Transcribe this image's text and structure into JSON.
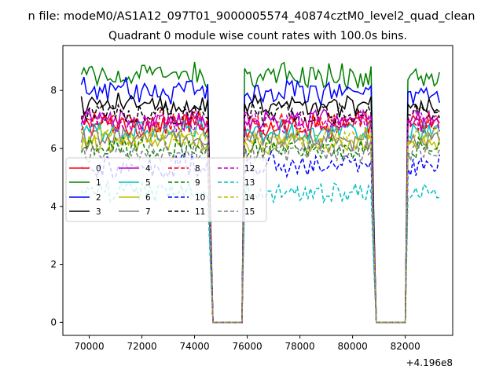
{
  "figure": {
    "suptitle": "n file: modeM0/AS1A12_097T01_9000005574_40874cztM0_level2_quad_clean",
    "offset_label": "+4.196e8"
  },
  "chart_data": {
    "type": "line",
    "title": "Quadrant 0 module wise count rates with 100.0s bins.",
    "xlabel": "",
    "ylabel": "",
    "xlim": [
      69000,
      83800
    ],
    "ylim": [
      -0.45,
      9.55
    ],
    "grid": false,
    "legend_position": "center-left",
    "xticks": [
      70000,
      72000,
      74000,
      76000,
      78000,
      80000,
      82000
    ],
    "xtick_labels": [
      "70000",
      "72000",
      "74000",
      "76000",
      "78000",
      "80000",
      "82000"
    ],
    "yticks": [
      0,
      2,
      4,
      6,
      8
    ],
    "ytick_labels": [
      "0",
      "2",
      "4",
      "6",
      "8"
    ],
    "bin_seconds": 100,
    "active_intervals": [
      [
        69700,
        74500
      ],
      [
        75900,
        80700
      ],
      [
        82100,
        83300
      ]
    ],
    "gap_intervals": [
      [
        74700,
        75800
      ],
      [
        80900,
        82000
      ]
    ],
    "series": [
      {
        "name": "0",
        "color": "#ff0000",
        "dash": "solid",
        "level": 6.8,
        "amp": 0.35
      },
      {
        "name": "1",
        "color": "#008000",
        "dash": "solid",
        "level": 8.5,
        "amp": 0.35
      },
      {
        "name": "2",
        "color": "#0000ff",
        "dash": "solid",
        "level": 8.0,
        "amp": 0.35
      },
      {
        "name": "3",
        "color": "#000000",
        "dash": "solid",
        "level": 7.5,
        "amp": 0.3
      },
      {
        "name": "4",
        "color": "#bf00bf",
        "dash": "solid",
        "level": 7.0,
        "amp": 0.3
      },
      {
        "name": "5",
        "color": "#00bfbf",
        "dash": "solid",
        "level": 6.6,
        "amp": 0.3
      },
      {
        "name": "6",
        "color": "#bfbf00",
        "dash": "solid",
        "level": 6.2,
        "amp": 0.3
      },
      {
        "name": "7",
        "color": "#808080",
        "dash": "solid",
        "level": 6.3,
        "amp": 0.3
      },
      {
        "name": "8",
        "color": "#ff0000",
        "dash": "dashed",
        "level": 6.9,
        "amp": 0.3
      },
      {
        "name": "9",
        "color": "#008000",
        "dash": "dashed",
        "level": 6.0,
        "amp": 0.3
      },
      {
        "name": "10",
        "color": "#0000ff",
        "dash": "dashed",
        "level": 5.4,
        "amp": 0.35
      },
      {
        "name": "11",
        "color": "#000000",
        "dash": "dashed",
        "level": 7.2,
        "amp": 0.3
      },
      {
        "name": "12",
        "color": "#bf00bf",
        "dash": "dashed",
        "level": 6.9,
        "amp": 0.3
      },
      {
        "name": "13",
        "color": "#00bfbf",
        "dash": "dashed",
        "level": 4.5,
        "amp": 0.3
      },
      {
        "name": "14",
        "color": "#bfbf00",
        "dash": "dashed",
        "level": 6.4,
        "amp": 0.3
      },
      {
        "name": "15",
        "color": "#808080",
        "dash": "dashed",
        "level": 5.9,
        "amp": 0.3
      }
    ]
  }
}
